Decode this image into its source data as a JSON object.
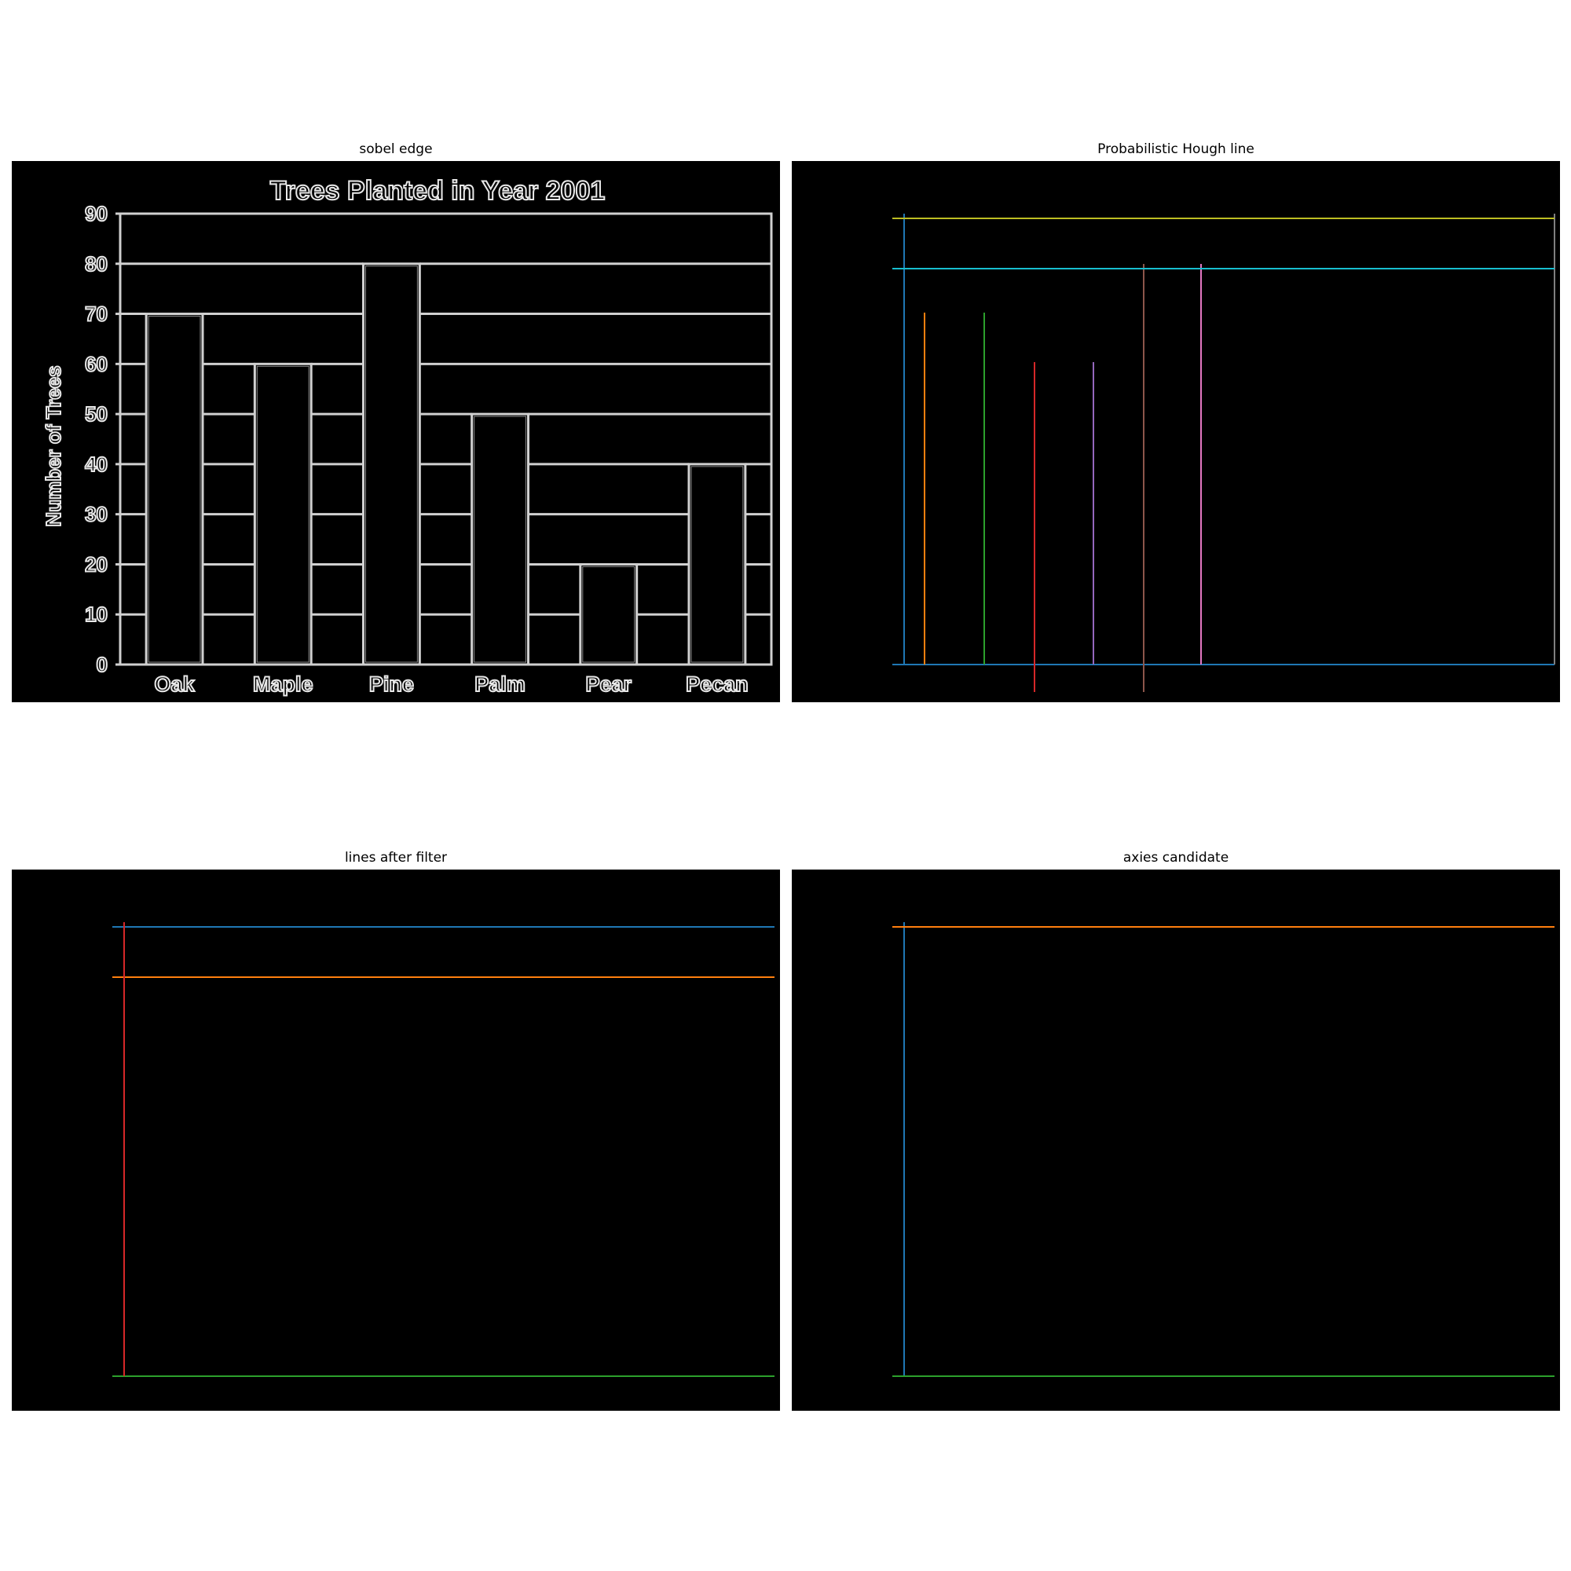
{
  "panels": [
    {
      "title": "sobel edge"
    },
    {
      "title": "Probabilistic Hough line"
    },
    {
      "title": "lines after filter"
    },
    {
      "title": "axies candidate"
    }
  ],
  "chart_data": {
    "type": "bar",
    "title": "Trees Planted in Year 2001",
    "xlabel": "",
    "ylabel": "Number of Trees",
    "categories": [
      "Oak",
      "Maple",
      "Pine",
      "Palm",
      "Pear",
      "Pecan"
    ],
    "values": [
      70,
      60,
      80,
      50,
      20,
      40
    ],
    "ylim": [
      0,
      90
    ],
    "yticks": [
      "0",
      "10",
      "20",
      "30",
      "40",
      "50",
      "60",
      "70",
      "80",
      "90"
    ],
    "grid": true,
    "rendering": "sobel edge outline"
  },
  "line_colors": {
    "blue": "#1f77b4",
    "orange": "#ff7f0e",
    "green": "#2ca02c",
    "red": "#d62728",
    "purple": "#9467bd",
    "brown": "#8c564b",
    "pink": "#e377c2",
    "gray": "#7f7f7f",
    "olive": "#bcbd22",
    "cyan": "#17becf"
  }
}
